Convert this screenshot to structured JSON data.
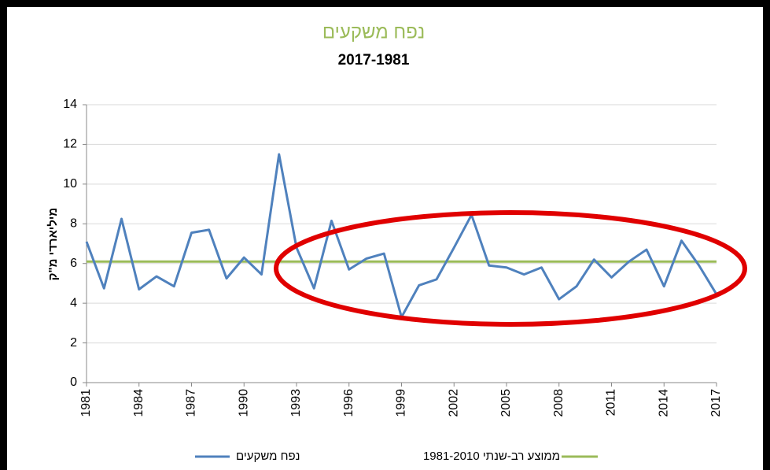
{
  "chart_data": {
    "type": "line",
    "title": "נפח משקעים",
    "subtitle": "2017-1981",
    "y_label": "מיליארדי מ\"ק",
    "x": [
      1981,
      1982,
      1983,
      1984,
      1985,
      1986,
      1987,
      1988,
      1989,
      1990,
      1991,
      1992,
      1993,
      1994,
      1995,
      1996,
      1997,
      1998,
      1999,
      2000,
      2001,
      2002,
      2003,
      2004,
      2005,
      2006,
      2007,
      2008,
      2009,
      2010,
      2011,
      2012,
      2013,
      2014,
      2015,
      2016,
      2017
    ],
    "series": [
      {
        "name": "נפח משקעים",
        "color": "#4f81bd",
        "values": [
          7.1,
          4.75,
          8.25,
          4.7,
          5.35,
          4.85,
          7.55,
          7.7,
          5.25,
          6.3,
          5.45,
          11.5,
          6.8,
          4.75,
          8.15,
          5.7,
          6.25,
          6.5,
          3.3,
          4.9,
          5.2,
          6.8,
          8.45,
          5.9,
          5.8,
          5.45,
          5.8,
          4.2,
          4.85,
          6.2,
          5.3,
          6.1,
          6.7,
          4.85,
          7.15,
          5.9,
          4.45
        ]
      }
    ],
    "reference_line": {
      "name": "ממוצע רב-שנתי 1981-2010",
      "value": 6.1,
      "color": "#9bbb59"
    },
    "xlim": [
      1981,
      2017
    ],
    "xticks": [
      1981,
      1984,
      1987,
      1990,
      1993,
      1996,
      1999,
      2002,
      2005,
      2008,
      2011,
      2014,
      2017
    ],
    "ylim": [
      0,
      14
    ],
    "yticks": [
      0,
      2,
      4,
      6,
      8,
      10,
      12,
      14
    ],
    "grid": true
  }
}
